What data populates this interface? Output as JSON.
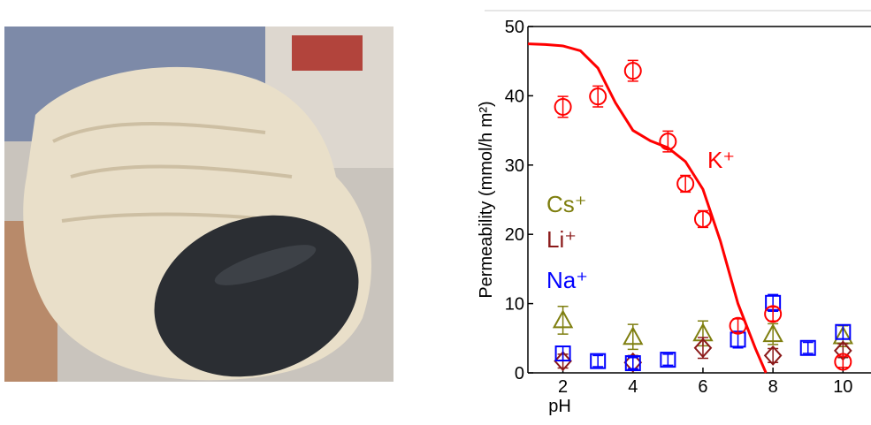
{
  "chart_data": {
    "type": "scatter",
    "xlabel": "pH",
    "ylabel": "Permeability (mmol/h m²)",
    "xlim": [
      1,
      10.8
    ],
    "ylim": [
      0,
      50
    ],
    "xticks": [
      2,
      4,
      6,
      8,
      10
    ],
    "yticks": [
      0,
      10,
      20,
      30,
      40,
      50
    ],
    "series": [
      {
        "name": "Cs⁺",
        "color": "#7f7f10",
        "marker": "triangle",
        "x": [
          2,
          4,
          6,
          8,
          10
        ],
        "values": [
          7.6,
          5.2,
          5.7,
          5.6,
          5.3
        ],
        "errors": [
          2,
          1.8,
          1.8,
          1.5,
          1.5
        ]
      },
      {
        "name": "Li⁺",
        "color": "#8b1a1a",
        "marker": "diamond",
        "x": [
          2,
          4,
          6,
          8,
          10
        ],
        "values": [
          1.7,
          1.5,
          3.6,
          2.5,
          3.2
        ],
        "errors": [
          1,
          1,
          1.5,
          1,
          1
        ]
      },
      {
        "name": "Na⁺",
        "color": "#0000ff",
        "marker": "square",
        "x": [
          2,
          3,
          4,
          5,
          7,
          8,
          9,
          10
        ],
        "values": [
          2.8,
          1.7,
          1.4,
          1.9,
          4.8,
          10.1,
          3.6,
          5.9
        ],
        "errors": [
          1,
          0.8,
          0.8,
          0.8,
          1.2,
          1.2,
          0.8,
          1
        ]
      },
      {
        "name": "K⁺",
        "color": "#ff0000",
        "marker": "circle",
        "x": [
          2,
          3,
          4,
          5,
          5.5,
          6,
          7,
          8,
          10
        ],
        "values": [
          38.4,
          39.9,
          43.6,
          33.4,
          27.3,
          22.2,
          6.8,
          8.5,
          1.6
        ],
        "errors": [
          1.5,
          1.5,
          1.5,
          1.5,
          1.2,
          1.2,
          1,
          1,
          0.8
        ]
      }
    ],
    "curve": {
      "color": "#ff0000",
      "x": [
        1,
        1.5,
        2,
        2.5,
        3,
        3.5,
        4,
        4.5,
        5,
        5.5,
        6,
        6.5,
        7,
        7.5,
        7.8
      ],
      "values": [
        47.5,
        47.4,
        47.2,
        46.5,
        44,
        39,
        35,
        33.5,
        32.5,
        30.5,
        26.5,
        19,
        10,
        3.5,
        0
      ]
    }
  }
}
